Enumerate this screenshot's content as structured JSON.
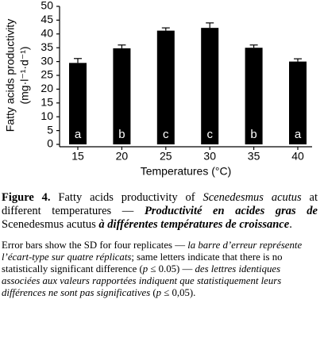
{
  "chart_data": {
    "type": "bar",
    "ylabel": [
      "Fatty acids productivity",
      "(mg·l⁻¹·d⁻¹)"
    ],
    "xlabel": "Temperatures (°C)",
    "categories": [
      "15",
      "20",
      "25",
      "30",
      "35",
      "40"
    ],
    "values": [
      29.5,
      34.8,
      41.2,
      42.2,
      35.0,
      30.0
    ],
    "errors": [
      1.6,
      1.2,
      1.0,
      1.8,
      1.0,
      1.0
    ],
    "letters": [
      "a",
      "b",
      "c",
      "c",
      "b",
      "a"
    ],
    "color": "#000000",
    "ylim": [
      0,
      50
    ],
    "yticks": [
      0,
      5,
      10,
      15,
      20,
      25,
      30,
      35,
      40,
      45,
      50
    ],
    "grid": false
  },
  "caption": {
    "figure": [
      "Figure 4.",
      " Fatty acids productivity of ",
      "Scenedesmus acutus",
      " at different temperatures — ",
      "Productivité en acides gras de",
      " Scenedesmus acutus ",
      "à différentes températures de croissance",
      "."
    ],
    "note": [
      "Error bars show the SD for four replicates — ",
      "la barre d’erreur représente l’écart-type sur quatre réplicats",
      "; same letters indicate that there is no statistically significant difference (",
      "p",
      " ≤ 0.05) — ",
      "des lettres identiques associées aux valeurs rapportées indiquent que statistiquement leurs différences ne sont pas significatives",
      " (",
      "p",
      " ≤ 0,05)."
    ]
  }
}
